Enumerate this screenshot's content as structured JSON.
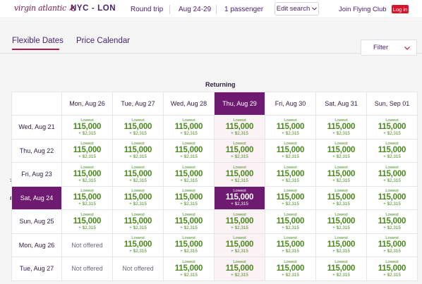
{
  "header": {
    "logo": "virgin atlantic",
    "route": "NYC - LON",
    "trip_type": "Round trip",
    "dates": "Aug 24-29",
    "passengers": "1 passenger",
    "edit_search": "Edit search",
    "join": "Join Flying Club",
    "login": "Log in"
  },
  "tabs": {
    "flexible": "Flexible Dates",
    "calendar": "Price Calendar",
    "active": "Flexible Dates"
  },
  "filter": {
    "label": "Filter"
  },
  "axis": {
    "returning": "Returning",
    "departing": "Departing"
  },
  "columns": [
    "Mon, Aug 26",
    "Tue, Aug 27",
    "Wed, Aug 28",
    "Thu, Aug 29",
    "Fri, Aug 30",
    "Sat, Aug 31",
    "Sun, Sep 01"
  ],
  "selected": {
    "return_col": 3,
    "depart_row": 3
  },
  "rows": [
    {
      "label": "Wed, Aug 21",
      "cells": [
        "p",
        "p",
        "p",
        "p",
        "p",
        "p",
        "p"
      ]
    },
    {
      "label": "Thu, Aug 22",
      "cells": [
        "p",
        "p",
        "p",
        "p",
        "p",
        "p",
        "p"
      ]
    },
    {
      "label": "Fri, Aug 23",
      "cells": [
        "p",
        "p",
        "p",
        "p",
        "p",
        "p",
        "p"
      ]
    },
    {
      "label": "Sat, Aug 24",
      "cells": [
        "p",
        "p",
        "p",
        "p",
        "p",
        "p",
        "p"
      ]
    },
    {
      "label": "Sun, Aug 25",
      "cells": [
        "p",
        "p",
        "p",
        "p",
        "p",
        "p",
        "p"
      ]
    },
    {
      "label": "Mon, Aug 26",
      "cells": [
        "n",
        "p",
        "p",
        "p",
        "p",
        "p",
        "p"
      ]
    },
    {
      "label": "Tue, Aug 27",
      "cells": [
        "n",
        "n",
        "p",
        "p",
        "p",
        "p",
        "p"
      ]
    }
  ],
  "price": {
    "tag": "Lowest",
    "points": "115,000",
    "fee": "+ $2,315"
  },
  "not_offered": "Not offered",
  "colors": {
    "brand": "#6d1a70",
    "price": "#4a8a1c",
    "login": "#d9132b",
    "tab_underline": "#b2174f"
  }
}
